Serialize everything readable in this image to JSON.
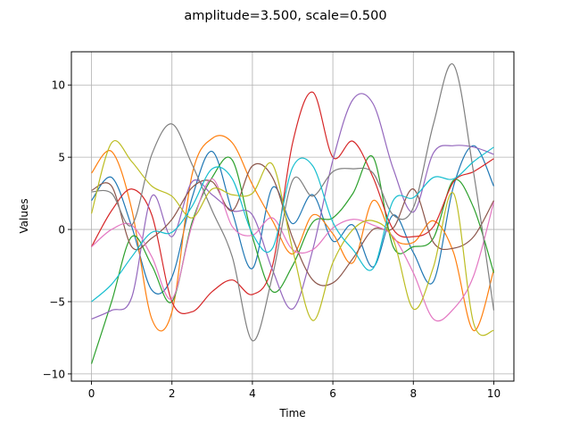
{
  "chart_data": {
    "type": "line",
    "title": "amplitude=3.500, scale=0.500",
    "xlabel": "Time",
    "ylabel": "Values",
    "xlim": [
      -0.5,
      10.5
    ],
    "ylim": [
      -10.5,
      12.3
    ],
    "xticks": [
      0,
      2,
      4,
      6,
      8,
      10
    ],
    "yticks": [
      -10,
      -5,
      0,
      5,
      10
    ],
    "xtick_labels": [
      "0",
      "2",
      "4",
      "6",
      "8",
      "10"
    ],
    "ytick_labels": [
      "−10",
      "−5",
      "0",
      "5",
      "10"
    ],
    "grid": true,
    "legend": "none",
    "x": [
      0,
      0.5,
      1,
      1.5,
      2,
      2.5,
      3,
      3.5,
      4,
      4.5,
      5,
      5.5,
      6,
      6.5,
      7,
      7.5,
      8,
      8.5,
      9,
      9.5,
      10
    ],
    "series": [
      {
        "color": "#1f77b4",
        "values": [
          2.0,
          3.6,
          0.2,
          -4.2,
          -3.3,
          2.2,
          5.4,
          1.2,
          -2.7,
          2.9,
          0.4,
          2.4,
          -0.8,
          0.3,
          -2.6,
          1.0,
          -1.6,
          -3.6,
          3.0,
          5.8,
          3.0
        ]
      },
      {
        "color": "#ff7f0e",
        "values": [
          3.9,
          5.4,
          1.4,
          -6.2,
          -5.7,
          3.8,
          6.3,
          6.0,
          3.1,
          0.6,
          -1.7,
          1.0,
          -0.3,
          -2.3,
          2.0,
          -0.6,
          -0.9,
          0.6,
          -1.6,
          -7.0,
          -2.8
        ]
      },
      {
        "color": "#2ca02c",
        "values": [
          -9.3,
          -5.0,
          -0.5,
          -2.5,
          -5.0,
          0.5,
          3.6,
          4.8,
          -0.5,
          -4.3,
          -2.5,
          0.5,
          0.8,
          2.5,
          5.0,
          -1.2,
          -1.2,
          -0.6,
          3.4,
          1.5,
          -3.0
        ]
      },
      {
        "color": "#d62728",
        "values": [
          -1.2,
          1.3,
          2.8,
          1.0,
          -5.0,
          -5.7,
          -4.3,
          -3.5,
          -4.5,
          -2.5,
          6.0,
          9.5,
          5.0,
          6.1,
          3.6,
          0.0,
          -0.5,
          0.2,
          3.3,
          4.0,
          4.9
        ]
      },
      {
        "color": "#9467bd",
        "values": [
          -6.2,
          -5.6,
          -4.7,
          2.3,
          -0.5,
          3.3,
          2.4,
          1.3,
          1.0,
          -2.8,
          -5.5,
          -1.4,
          4.8,
          9.0,
          8.7,
          4.2,
          1.2,
          5.3,
          5.8,
          5.7,
          5.2
        ]
      },
      {
        "color": "#8c564b",
        "values": [
          2.7,
          3.0,
          -1.2,
          -0.6,
          0.7,
          2.9,
          3.3,
          1.3,
          4.4,
          3.6,
          -0.6,
          -3.5,
          -3.7,
          -2.0,
          0.0,
          0.1,
          2.8,
          -0.9,
          -1.3,
          -0.5,
          2.0
        ]
      },
      {
        "color": "#e377c2",
        "values": [
          -1.2,
          0.0,
          0.3,
          -1.9,
          -4.8,
          0.3,
          3.5,
          0.2,
          -0.4,
          0.8,
          -1.4,
          -1.4,
          0.1,
          0.7,
          0.3,
          -0.5,
          -3.0,
          -6.2,
          -5.5,
          -3.2,
          1.9
        ]
      },
      {
        "color": "#7f7f7f",
        "values": [
          2.6,
          2.5,
          0.3,
          5.2,
          7.3,
          4.5,
          1.3,
          -1.9,
          -7.7,
          -3.2,
          3.4,
          2.3,
          4.0,
          4.2,
          3.9,
          1.0,
          1.5,
          7.3,
          11.4,
          3.9,
          -5.6
        ]
      },
      {
        "color": "#bcbd22",
        "values": [
          1.1,
          6.0,
          4.7,
          3.0,
          2.3,
          0.8,
          2.8,
          2.4,
          2.5,
          4.5,
          -1.4,
          -6.3,
          -2.3,
          0.0,
          0.6,
          -0.7,
          -5.5,
          -2.6,
          2.5,
          -6.5,
          -7.0
        ]
      },
      {
        "color": "#17becf",
        "values": [
          -5.0,
          -3.8,
          -1.9,
          -0.2,
          -0.2,
          1.6,
          4.2,
          3.5,
          -0.3,
          -1.3,
          4.3,
          4.4,
          0.5,
          -1.4,
          -2.7,
          2.0,
          2.2,
          3.6,
          3.5,
          4.7,
          5.7
        ]
      }
    ]
  }
}
